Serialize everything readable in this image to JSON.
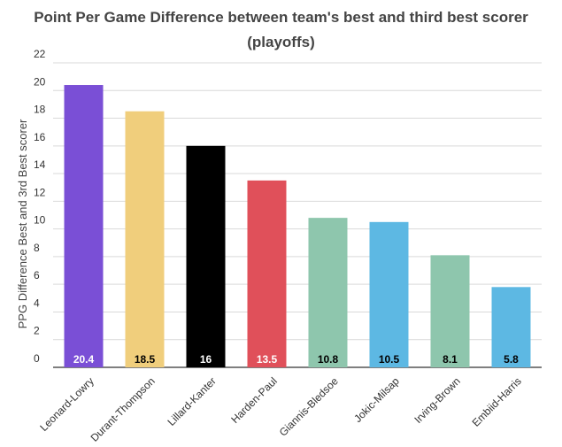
{
  "title_line1": "Point Per Game Difference between team's best and third best scorer",
  "title_line2": "(playoffs)",
  "chart_data": {
    "type": "bar",
    "title": "Point Per Game Difference between team's best and third best scorer (playoffs)",
    "xlabel": "",
    "ylabel": "PPG Difference Best and 3rd Best scorer",
    "ylim": [
      0,
      22
    ],
    "yticks": [
      0,
      2,
      4,
      6,
      8,
      10,
      12,
      14,
      16,
      18,
      20,
      22
    ],
    "grid": true,
    "legend": "none",
    "categories": [
      "Leonard-Lowry",
      "Durant-Thompson",
      "Lillard-Kanter",
      "Harden-Paul",
      "Giannis-Bledsoe",
      "Jokic-Milsap",
      "Irving-Brown",
      "Embiid-Harris"
    ],
    "values": [
      20.4,
      18.5,
      16,
      13.5,
      10.8,
      10.5,
      8.1,
      5.8
    ],
    "data_labels": [
      "20.4",
      "18.5",
      "16",
      "13.5",
      "10.8",
      "10.5",
      "8.1",
      "5.8"
    ],
    "colors": [
      "#7a4fd6",
      "#f0ce7c",
      "#000000",
      "#e0505a",
      "#8ec6ad",
      "#5db8e3",
      "#8ec6ad",
      "#5db8e3"
    ],
    "label_colors": [
      "#ffffff",
      "#000000",
      "#ffffff",
      "#ffffff",
      "#000000",
      "#000000",
      "#000000",
      "#000000"
    ]
  }
}
